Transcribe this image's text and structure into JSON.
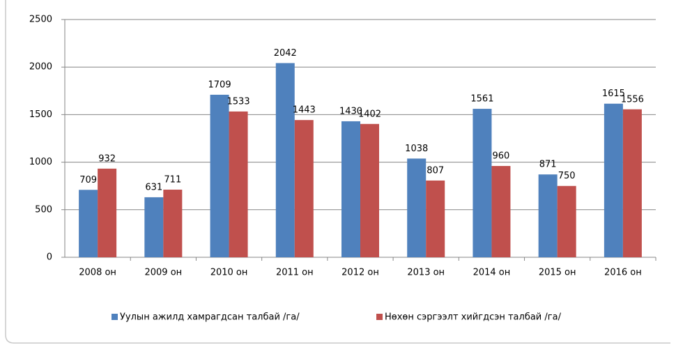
{
  "chart_data": {
    "type": "bar",
    "categories": [
      "2008 он",
      "2009 он",
      "2010 он",
      "2011 он",
      "2012 он",
      "2013 он",
      "2014 он",
      "2015 он",
      "2016 он"
    ],
    "series": [
      {
        "name": "Уулын ажилд хамрагдсан талбай /га/",
        "color": "#4f81bd",
        "values": [
          709,
          631,
          1709,
          2042,
          1430,
          1038,
          1561,
          871,
          1615
        ]
      },
      {
        "name": "Нөхөн сэргээлт хийгдсэн талбай /га/",
        "color": "#c0504d",
        "values": [
          932,
          711,
          1533,
          1443,
          1402,
          807,
          960,
          750,
          1556
        ]
      }
    ],
    "ylim": [
      0,
      2500
    ],
    "yticks": [
      0,
      500,
      1000,
      1500,
      2000,
      2500
    ],
    "grid": true,
    "legend": "bottom"
  }
}
